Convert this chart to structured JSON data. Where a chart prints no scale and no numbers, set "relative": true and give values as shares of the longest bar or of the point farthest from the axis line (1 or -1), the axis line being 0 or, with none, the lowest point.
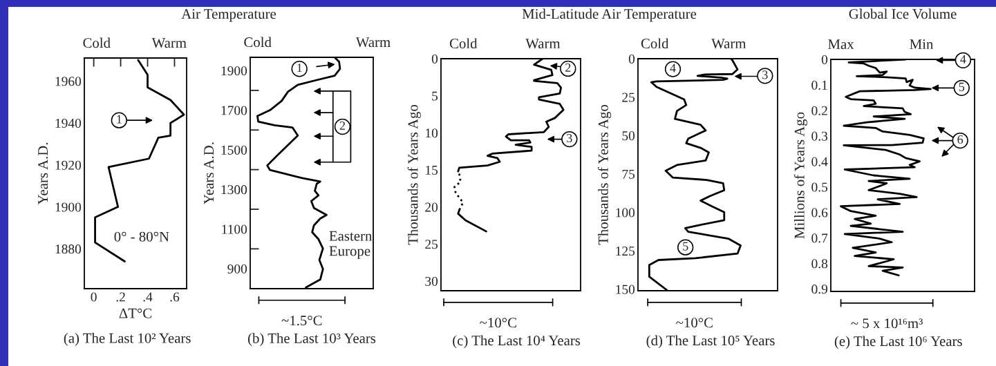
{
  "chart_data": [
    {
      "type": "line",
      "title": "Air Temperature",
      "xlabel": "ΔT°C",
      "ylabel": "Years A.D.",
      "orientation": "horizontal",
      "xlim": [
        -0.07,
        0.69
      ],
      "xticks": [
        0,
        {
          "value": 0.2,
          "label": ".2"
        },
        {
          "value": 0.4,
          "label": ".4"
        },
        {
          "value": 0.6,
          "label": ".6"
        }
      ],
      "ylim": [
        1861,
        1971
      ],
      "yticks": [
        1880,
        1900,
        1920,
        1940,
        1960
      ],
      "series": [
        {
          "color": "#000000",
          "x": [
            1874,
            1883,
            1895,
            1900,
            1919,
            1923,
            1933,
            1934,
            1940,
            1944,
            1951,
            1957,
            1963,
            1970
          ],
          "values": [
            0.23,
            0.01,
            0.01,
            0.18,
            0.11,
            0.41,
            0.48,
            0.57,
            0.57,
            0.67,
            0.57,
            0.4,
            0.4,
            0.33
          ]
        }
      ],
      "annotations": [
        "Cold",
        "Warm",
        "1",
        "0° - 80°N",
        "(a) The Last 10² Years"
      ]
    },
    {
      "type": "line",
      "xlabel": "~1.5°C",
      "ylabel": "Years A.D.",
      "orientation": "horizontal",
      "relative": true,
      "ylim": [
        799,
        1967
      ],
      "yticks": [
        900,
        {
          "value": 1000,
          "label": null
        },
        1100,
        {
          "value": 1200,
          "label": null
        },
        1300,
        {
          "value": 1400,
          "label": null
        },
        1500,
        {
          "value": 1600,
          "label": null
        },
        1700,
        {
          "value": 1800,
          "label": null
        },
        1900
      ],
      "series": [
        {
          "color": "#000000",
          "x": [
            805,
            845,
            898,
            944,
            1002,
            1049,
            1084,
            1119,
            1153,
            1171,
            1206,
            1241,
            1270,
            1293,
            1328,
            1340,
            1357,
            1398,
            1421,
            1467,
            1572,
            1613,
            1624,
            1642,
            1671,
            1700,
            1747,
            1793,
            1828,
            1851,
            1874,
            1909,
            1944,
            1967
          ],
          "values": [
            0.62,
            0.78,
            0.81,
            0.77,
            0.81,
            0.76,
            0.69,
            0.71,
            0.78,
            0.85,
            0.71,
            0.68,
            0.76,
            0.72,
            0.74,
            0.78,
            0.58,
            0.22,
            0.19,
            0.29,
            0.53,
            0.47,
            0.27,
            0.09,
            0.08,
            0.22,
            0.35,
            0.42,
            0.53,
            0.73,
            0.94,
            1,
            0.99,
            0.94
          ]
        }
      ],
      "annotations": [
        "Cold",
        "Warm",
        "1",
        "2",
        "Eastern\nEurope",
        "(b) The Last 10³ Years"
      ]
    },
    {
      "type": "line",
      "title": "Mid-Latitude Air Temperature",
      "xlabel": "~10°C",
      "ylabel": "Thousands of Years Ago",
      "orientation": "horizontal",
      "relative": true,
      "ylim": [
        31.3,
        0
      ],
      "yticks": [
        0,
        5,
        10,
        15,
        20,
        25,
        30
      ],
      "series": [
        {
          "color": "#000000",
          "x": [
            23.3,
            21.8,
            20.9,
            20.4
          ],
          "values": [
            0.37,
            0.2,
            0.14,
            0.15
          ]
        },
        {
          "color": "#000000",
          "line_style": "dotted",
          "x": [
            20.4,
            19.4,
            18.1,
            17.3,
            16.6,
            15.6,
            15.2
          ],
          "values": [
            0.15,
            0.18,
            0.12,
            0.11,
            0.16,
            0.15,
            0.14
          ]
        },
        {
          "color": "#000000",
          "x": [
            15.2,
            14.7,
            14.4,
            13.9,
            13.4,
            13.1,
            12.8,
            12.4,
            11.9,
            11.6,
            11.3,
            11.0,
            11.0,
            10.5,
            10.2,
            9.9,
            9.2,
            8.5,
            8.0,
            6.9,
            6.1,
            5.5,
            5.2,
            4.7,
            3.9,
            3.3,
            3.0,
            2.9,
            2.2,
            1.5,
            0.8,
            0
          ],
          "values": [
            0.14,
            0.15,
            0.38,
            0.48,
            0.46,
            0.38,
            0.42,
            0.74,
            0.74,
            0.61,
            0.73,
            0.72,
            0.57,
            0.53,
            0.55,
            0.84,
            0.88,
            0.86,
            0.93,
            1,
            0.97,
            0.8,
            0.8,
            0.97,
            0.98,
            0.95,
            0.76,
            0.76,
            0.91,
            0.9,
            0.76,
            0.83
          ]
        }
      ],
      "annotations": [
        "Cold",
        "Warm",
        "2",
        "3",
        "(c) The Last 10⁴ Years"
      ]
    },
    {
      "type": "line",
      "xlabel": "~10°C",
      "ylabel": "Thousands of Years Ago",
      "orientation": "horizontal",
      "relative": true,
      "ylim": [
        151,
        0
      ],
      "yticks": [
        0,
        25,
        50,
        75,
        100,
        125,
        150
      ],
      "series": [
        {
          "color": "#000000",
          "x": [
            151,
            141.8,
            134.3,
            131,
            129.8,
            126.8,
            121.6,
            117.1,
            112.6,
            110.3,
            108.1,
            105.1,
            99.9,
            96.1,
            92.4,
            89.4,
            85.6,
            81.1,
            78.9,
            77.4,
            72.9,
            69.2,
            66.2,
            61.0,
            58.0,
            55.0,
            52.0,
            46.7,
            43.0,
            39.2,
            34.0,
            30.2,
            26.5,
            18.3,
            15.3,
            14.8,
            13.8,
            13.0,
            12.3,
            11.2,
            10.3,
            10.0,
            7.0,
            1.0,
            0.3
          ],
          "values": [
            0.29,
            0.11,
            0.11,
            0.2,
            0.56,
            0.97,
            1,
            0.88,
            0.49,
            0.46,
            0.61,
            0.84,
            0.84,
            0.72,
            0.61,
            0.7,
            0.84,
            0.83,
            0.67,
            0.34,
            0.27,
            0.38,
            0.66,
            0.69,
            0.61,
            0.47,
            0.49,
            0.66,
            0.61,
            0.36,
            0.38,
            0.47,
            0.45,
            0.18,
            0.13,
            0.18,
            0.83,
            0.87,
            0.81,
            0.58,
            0.65,
            0.92,
            0.97,
            0.92,
            0.91
          ]
        }
      ],
      "annotations": [
        "Cold",
        "Warm",
        "4",
        "3",
        "5",
        "(d) The Last 10⁵ Years"
      ]
    },
    {
      "type": "line",
      "title": "Global Ice Volume",
      "xlabel": "~ 5 x 10¹⁶m³",
      "ylabel": "Millions of Years Ago",
      "orientation": "horizontal",
      "relative": true,
      "ylim": [
        0.91,
        0
      ],
      "yticks": [
        0,
        0.1,
        0.2,
        0.3,
        0.4,
        0.5,
        0.6,
        0.7,
        0.8,
        0.9
      ],
      "series": [
        {
          "color": "#000000",
          "x": [
            0,
            0.012,
            0.016,
            0.025,
            0.034,
            0.052,
            0.048,
            0.061,
            0.066,
            0.07,
            0.075,
            0.089,
            0.08,
            0.102,
            0.111,
            0.116,
            0.12,
            0.125,
            0.147,
            0.156,
            0.161,
            0.174,
            0.183,
            0.192,
            0.206,
            0.215,
            0.224,
            0.233,
            0.247,
            0.26,
            0.269,
            0.283,
            0.296,
            0.31,
            0.327,
            0.336,
            0.337,
            0.355,
            0.373,
            0.387,
            0.4,
            0.414,
            0.423,
            0.432,
            0.455,
            0.468,
            0.477,
            0.486,
            0.513,
            0.527,
            0.54,
            0.549,
            0.567,
            0.576,
            0.595,
            0.613,
            0.626,
            0.644,
            0.653,
            0.676,
            0.685,
            0.703,
            0.717,
            0.739,
            0.757,
            0.771,
            0.784,
            0.811,
            0.816,
            0.829,
            0.847
          ],
          "values": [
            0.75,
            0.18,
            0.33,
            0.38,
            0.45,
            0.49,
            0.56,
            0.52,
            0.26,
            0.56,
            0.75,
            0.76,
            0.82,
            0.79,
            0.84,
            1,
            0.84,
            0.29,
            0.15,
            0.2,
            0.43,
            0.45,
            0.33,
            0.72,
            0.74,
            0.8,
            0.43,
            0.74,
            0.36,
            0.13,
            0.45,
            0.52,
            0.79,
            0.93,
            0.92,
            0.61,
            0.13,
            0.55,
            0.69,
            0.75,
            0.89,
            0.79,
            0.84,
            0.14,
            0.43,
            0.79,
            0.38,
            0.56,
            0.38,
            0.69,
            0.86,
            0.47,
            0.69,
            0.1,
            0.2,
            0.45,
            0.24,
            0.4,
            0.2,
            0.72,
            0.14,
            0.49,
            0.61,
            0.22,
            0.45,
            0.24,
            0.63,
            0.38,
            0.72,
            0.52,
            0.68
          ]
        }
      ],
      "annotations": [
        "Max",
        "Min",
        "4",
        "5",
        "6",
        "(e) The Last 10⁶ Years"
      ]
    }
  ]
}
